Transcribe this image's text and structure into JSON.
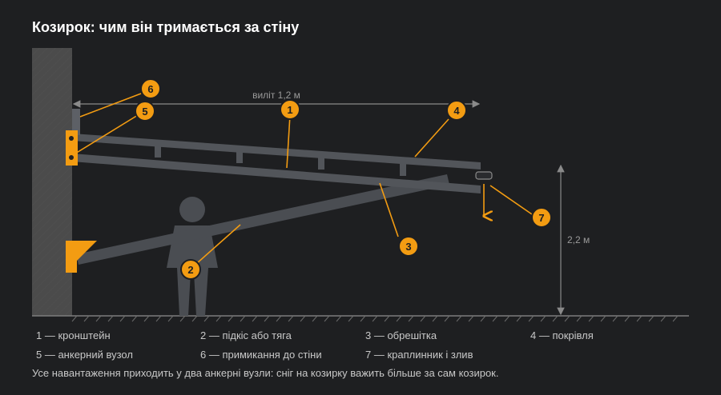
{
  "title": "Козирок: чим він тримається за стіну",
  "dimensions": {
    "overhang": "виліт 1,2 м",
    "height": "2,2 м"
  },
  "markers": [
    "1",
    "2",
    "3",
    "4",
    "5",
    "6",
    "7"
  ],
  "legend": [
    "1 — кронштейн",
    "2 — підкіс або тяга",
    "3 — обрешітка",
    "4 — покрівля",
    "5 — анкерний вузол",
    "6 — примикання до стіни",
    "7 — краплинник і злив"
  ],
  "note": "Усе навантаження приходить у два анкерні вузли: сніг на козирку важить більше за сам козирок.",
  "colors": {
    "background": "#1e1f21",
    "accent": "#f39c12",
    "structure": "#4a4d52",
    "wall": "#4b4b4b",
    "line": "#8a8a8a"
  }
}
